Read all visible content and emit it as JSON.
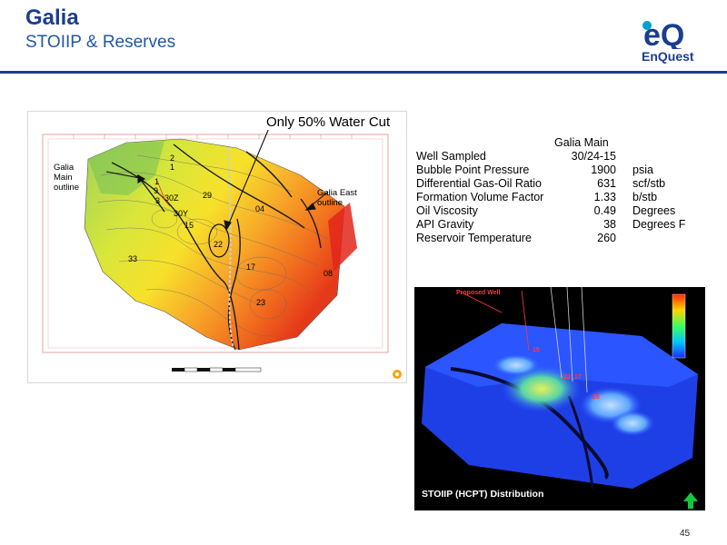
{
  "header": {
    "title": "Galia",
    "subtitle": "STOIIP & Reserves",
    "logo_text": "EnQuest",
    "brand_color": "#1b3d8f",
    "accent_color": "#00a3c8"
  },
  "map": {
    "callout": "Only 50% Water Cut",
    "main_outline_label": [
      "Galia",
      "Main",
      "outline"
    ],
    "east_outline_label": [
      "Galia East",
      "outline"
    ],
    "well_labels": {
      "w2": "2",
      "w1": "1",
      "w9": "9",
      "w3": "3",
      "w30z": "30Z",
      "w30y": "30Y",
      "w15": "15",
      "w29": "29",
      "w04": "04",
      "w22": "22",
      "w33": "33",
      "w17": "17",
      "w08": "08",
      "w23": "23"
    },
    "legend_icon": "petrel-logo-icon"
  },
  "fluid_properties": {
    "header": "Galia Main",
    "rows": [
      {
        "label": "Well Sampled",
        "value": "30/24-15",
        "unit": ""
      },
      {
        "label": "Bubble Point Pressure",
        "value": "1900",
        "unit": "psia"
      },
      {
        "label": "Differential Gas-Oil Ratio",
        "value": "631",
        "unit": "scf/stb"
      },
      {
        "label": "Formation Volume Factor",
        "value": "1.33",
        "unit": "b/stb"
      },
      {
        "label": "Oil Viscosity",
        "value": "0.49",
        "unit": "Degrees"
      },
      {
        "label": "API Gravity",
        "value": "38",
        "unit": "Degrees F"
      },
      {
        "label": "Reservoir Temperature",
        "value": "260",
        "unit": ""
      }
    ]
  },
  "render": {
    "caption": "STOIIP (HCPT) Distribution",
    "proposed_label": "Proposed Well",
    "well_labels": {
      "a": "15",
      "b": "22",
      "c": "17",
      "d": "28"
    },
    "north_arrow_icon": "north-arrow-icon"
  },
  "page_number": "45"
}
